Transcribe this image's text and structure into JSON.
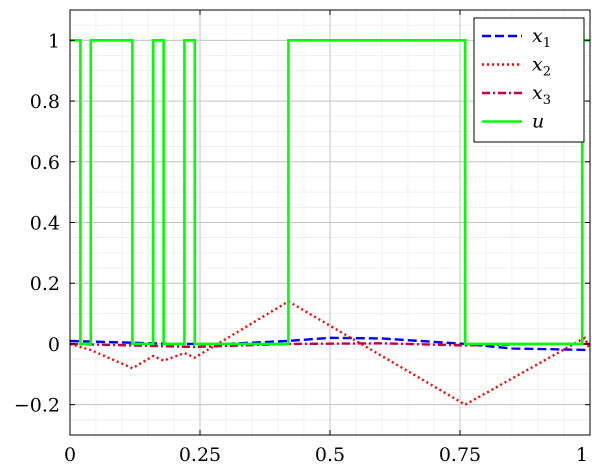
{
  "chart_data": {
    "type": "line",
    "title": "",
    "xlabel": "",
    "ylabel": "",
    "xlim": [
      0,
      1
    ],
    "ylim": [
      -0.3,
      1.1
    ],
    "grid": true,
    "minor_grid": true,
    "legend_position": "top-right",
    "x_ticks": [
      {
        "value": 0,
        "label": "0"
      },
      {
        "value": 0.25,
        "label": "0.25"
      },
      {
        "value": 0.5,
        "label": "0.5"
      },
      {
        "value": 0.75,
        "label": "0.75"
      },
      {
        "value": 1,
        "label": "1"
      }
    ],
    "y_ticks": [
      {
        "value": -0.2,
        "label": "−0.2"
      },
      {
        "value": 0,
        "label": "0"
      },
      {
        "value": 0.2,
        "label": "0.2"
      },
      {
        "value": 0.4,
        "label": "0.4"
      },
      {
        "value": 0.6,
        "label": "0.6"
      },
      {
        "value": 0.8,
        "label": "0.8"
      },
      {
        "value": 1,
        "label": "1"
      }
    ],
    "series": [
      {
        "name": "x",
        "subscript": "1",
        "color": "#0000ff",
        "dash": "dashed",
        "x": [
          0,
          0.1,
          0.2,
          0.3,
          0.42,
          0.5,
          0.6,
          0.76,
          0.85,
          1
        ],
        "y": [
          0.01,
          0.005,
          0.0,
          0.0,
          0.01,
          0.02,
          0.018,
          0.0,
          -0.015,
          -0.02
        ]
      },
      {
        "name": "x",
        "subscript": "2",
        "color": "#ff0000",
        "dash": "dotted",
        "x": [
          0,
          0.04,
          0.12,
          0.16,
          0.18,
          0.22,
          0.24,
          0.42,
          0.76,
          0.99,
          1
        ],
        "y": [
          0.0,
          -0.02,
          -0.08,
          -0.04,
          -0.055,
          -0.03,
          -0.045,
          0.14,
          -0.2,
          0.02,
          -0.02
        ]
      },
      {
        "name": "x",
        "subscript": "3",
        "color": "#c00040",
        "dash": "dashdot",
        "x": [
          0,
          0.12,
          0.24,
          0.42,
          0.6,
          0.76,
          0.9,
          1
        ],
        "y": [
          0.0,
          -0.005,
          -0.01,
          0.0,
          0.002,
          -0.005,
          0.0,
          0.0
        ]
      },
      {
        "name": "u",
        "subscript": "",
        "color": "#00ff00",
        "dash": "solid",
        "x": [
          0,
          0.02,
          0.02,
          0.04,
          0.04,
          0.12,
          0.12,
          0.16,
          0.16,
          0.18,
          0.18,
          0.22,
          0.22,
          0.24,
          0.24,
          0.42,
          0.42,
          0.76,
          0.76,
          0.985,
          0.985,
          1
        ],
        "y": [
          1,
          1,
          0,
          0,
          1,
          1,
          0,
          0,
          1,
          1,
          0,
          0,
          1,
          1,
          0,
          0,
          1,
          1,
          0,
          0,
          1,
          1
        ]
      }
    ]
  }
}
